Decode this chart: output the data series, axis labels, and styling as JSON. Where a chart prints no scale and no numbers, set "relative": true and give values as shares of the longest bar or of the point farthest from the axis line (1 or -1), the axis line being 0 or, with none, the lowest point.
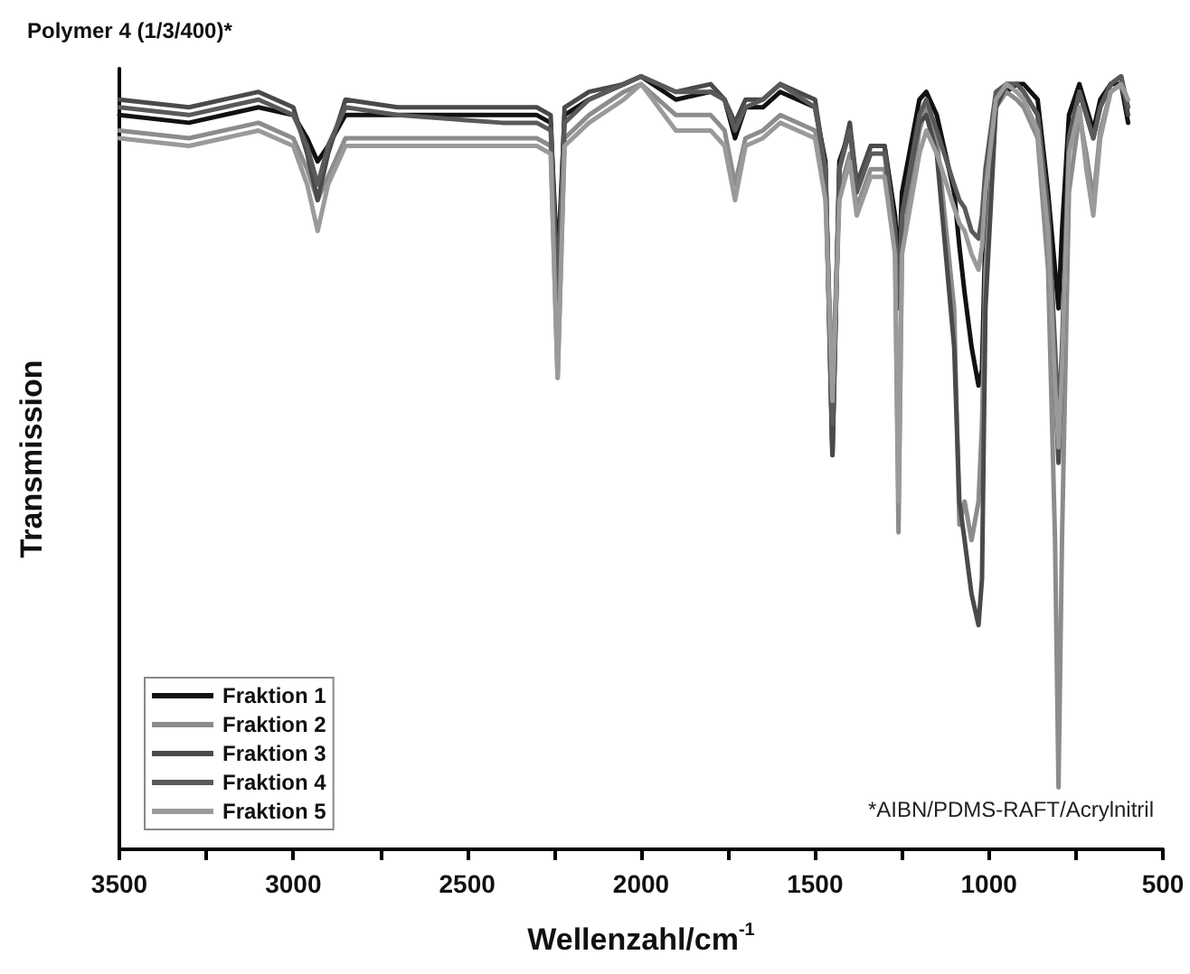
{
  "chart_data": {
    "type": "line",
    "relative": true,
    "title": "Polymer 4 (1/3/400)*",
    "xlabel": "Wellenzahl/cm$^{-1}$",
    "ylabel": "Transmission",
    "annotations": [
      "*AIBN/PDMS-RAFT/Acrylnitril"
    ],
    "xlim": [
      3500,
      500
    ],
    "xticks": [
      3500,
      {
        "value": 3250,
        "label": null
      },
      3000,
      {
        "value": 2750,
        "label": null
      },
      2500,
      {
        "value": 2250,
        "label": null
      },
      2000,
      {
        "value": 1750,
        "label": null
      },
      1500,
      {
        "value": 1250,
        "label": null
      },
      1000,
      {
        "value": 750,
        "label": null
      },
      500
    ],
    "x": [
      3500,
      3300,
      3100,
      3000,
      2960,
      2930,
      2900,
      2850,
      2700,
      2400,
      2300,
      2260,
      2240,
      2220,
      2150,
      2050,
      2000,
      1900,
      1800,
      1760,
      1730,
      1700,
      1650,
      1600,
      1500,
      1470,
      1450,
      1430,
      1400,
      1380,
      1340,
      1300,
      1270,
      1260,
      1250,
      1200,
      1180,
      1150,
      1100,
      1085,
      1070,
      1050,
      1030,
      1020,
      1010,
      980,
      950,
      920,
      900,
      860,
      830,
      810,
      800,
      790,
      770,
      740,
      720,
      700,
      680,
      650,
      620,
      600
    ],
    "series": [
      {
        "name": "Fraktion 1",
        "color": "#111111",
        "values": [
          0.95,
          0.94,
          0.96,
          0.95,
          0.92,
          0.89,
          0.91,
          0.95,
          0.95,
          0.95,
          0.95,
          0.94,
          0.75,
          0.95,
          0.97,
          0.99,
          1.0,
          0.97,
          0.98,
          0.97,
          0.92,
          0.96,
          0.96,
          0.98,
          0.96,
          0.89,
          0.51,
          0.89,
          0.93,
          0.86,
          0.91,
          0.91,
          0.82,
          0.75,
          0.85,
          0.97,
          0.98,
          0.95,
          0.85,
          0.78,
          0.72,
          0.65,
          0.6,
          0.62,
          0.8,
          0.97,
          0.98,
          0.99,
          0.99,
          0.97,
          0.85,
          0.75,
          0.7,
          0.8,
          0.95,
          0.99,
          0.96,
          0.93,
          0.97,
          0.99,
          0.99,
          0.94
        ]
      },
      {
        "name": "Fraktion 2",
        "color": "#8c8c8c",
        "values": [
          0.93,
          0.92,
          0.94,
          0.92,
          0.88,
          0.84,
          0.87,
          0.92,
          0.92,
          0.92,
          0.92,
          0.91,
          0.61,
          0.92,
          0.95,
          0.98,
          0.99,
          0.95,
          0.95,
          0.93,
          0.86,
          0.92,
          0.93,
          0.95,
          0.93,
          0.85,
          0.6,
          0.85,
          0.9,
          0.83,
          0.88,
          0.88,
          0.78,
          0.41,
          0.78,
          0.93,
          0.96,
          0.92,
          0.7,
          0.42,
          0.45,
          0.4,
          0.45,
          0.55,
          0.75,
          0.96,
          0.98,
          0.97,
          0.96,
          0.92,
          0.75,
          0.4,
          0.08,
          0.4,
          0.85,
          0.95,
          0.9,
          0.84,
          0.93,
          0.98,
          0.99,
          0.96
        ]
      },
      {
        "name": "Fraktion 3",
        "color": "#4a4a4a",
        "values": [
          0.97,
          0.96,
          0.98,
          0.96,
          0.9,
          0.84,
          0.9,
          0.97,
          0.96,
          0.96,
          0.96,
          0.95,
          0.7,
          0.96,
          0.98,
          0.99,
          1.0,
          0.98,
          0.99,
          0.97,
          0.94,
          0.97,
          0.97,
          0.99,
          0.97,
          0.88,
          0.51,
          0.88,
          0.94,
          0.86,
          0.91,
          0.91,
          0.8,
          0.7,
          0.82,
          0.94,
          0.95,
          0.9,
          0.65,
          0.45,
          0.4,
          0.33,
          0.29,
          0.35,
          0.7,
          0.96,
          0.99,
          0.99,
          0.98,
          0.95,
          0.82,
          0.6,
          0.5,
          0.62,
          0.92,
          0.98,
          0.95,
          0.92,
          0.96,
          0.99,
          1.0,
          0.95
        ]
      },
      {
        "name": "Fraktion 4",
        "color": "#5a5a5a",
        "values": [
          0.96,
          0.95,
          0.97,
          0.95,
          0.91,
          0.86,
          0.91,
          0.96,
          0.95,
          0.94,
          0.94,
          0.93,
          0.72,
          0.94,
          0.97,
          0.99,
          1.0,
          0.98,
          0.98,
          0.97,
          0.93,
          0.96,
          0.97,
          0.99,
          0.96,
          0.88,
          0.55,
          0.88,
          0.93,
          0.85,
          0.9,
          0.9,
          0.8,
          0.72,
          0.82,
          0.95,
          0.97,
          0.93,
          0.86,
          0.84,
          0.83,
          0.8,
          0.79,
          0.82,
          0.88,
          0.98,
          0.99,
          0.99,
          0.98,
          0.95,
          0.83,
          0.65,
          0.55,
          0.65,
          0.92,
          0.98,
          0.95,
          0.92,
          0.96,
          0.99,
          1.0,
          0.96
        ]
      },
      {
        "name": "Fraktion 5",
        "color": "#9a9a9a",
        "values": [
          0.92,
          0.91,
          0.93,
          0.91,
          0.86,
          0.8,
          0.86,
          0.91,
          0.91,
          0.91,
          0.91,
          0.9,
          0.61,
          0.91,
          0.94,
          0.97,
          0.99,
          0.93,
          0.93,
          0.91,
          0.84,
          0.91,
          0.92,
          0.94,
          0.92,
          0.84,
          0.58,
          0.84,
          0.89,
          0.82,
          0.87,
          0.87,
          0.77,
          0.45,
          0.77,
          0.9,
          0.93,
          0.9,
          0.83,
          0.81,
          0.8,
          0.77,
          0.75,
          0.78,
          0.85,
          0.97,
          0.99,
          0.98,
          0.97,
          0.93,
          0.8,
          0.6,
          0.52,
          0.62,
          0.9,
          0.96,
          0.88,
          0.82,
          0.92,
          0.98,
          0.99,
          0.97
        ]
      }
    ],
    "legend": "bottom left",
    "grid": false,
    "marker": "none",
    "line_style": "solid"
  }
}
